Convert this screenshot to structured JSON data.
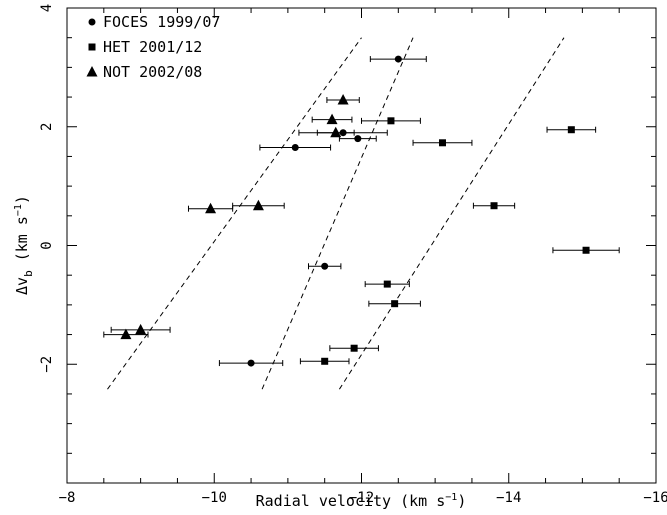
{
  "chart_data": {
    "type": "scatter",
    "xlabel": "Radial velocity (km s",
    "xlabel_sup": "−1",
    "xlabel_close": ")",
    "ylabel_main": "Δv",
    "ylabel_sub": "b",
    "ylabel_rest": " (km s",
    "ylabel_sup": "−1",
    "ylabel_close": ")",
    "xlim": [
      -8,
      -16
    ],
    "ylim": [
      -4,
      4
    ],
    "x_ticks": [
      {
        "v": -8,
        "label": "−8"
      },
      {
        "v": -10,
        "label": "−10"
      },
      {
        "v": -12,
        "label": "−12"
      },
      {
        "v": -14,
        "label": "−14"
      },
      {
        "v": -16,
        "label": "−16"
      }
    ],
    "y_ticks": [
      {
        "v": 4,
        "label": "4"
      },
      {
        "v": 2,
        "label": "2"
      },
      {
        "v": 0,
        "label": "0"
      },
      {
        "v": -2,
        "label": "−2"
      }
    ],
    "legend_position": "top-left",
    "series": [
      {
        "name": "FOCES 1999/07",
        "marker": "circle",
        "points": [
          {
            "x": -12.5,
            "y": 3.14,
            "xerr": 0.38
          },
          {
            "x": -11.75,
            "y": 1.9,
            "xerr": 0.6
          },
          {
            "x": -11.95,
            "y": 1.8,
            "xerr": 0.25
          },
          {
            "x": -11.1,
            "y": 1.65,
            "xerr": 0.48
          },
          {
            "x": -11.5,
            "y": -0.35,
            "xerr": 0.22
          },
          {
            "x": -10.5,
            "y": -1.98,
            "xerr": 0.43
          }
        ]
      },
      {
        "name": "HET 2001/12",
        "marker": "square",
        "points": [
          {
            "x": -12.4,
            "y": 2.1,
            "xerr": 0.4
          },
          {
            "x": -13.1,
            "y": 1.73,
            "xerr": 0.4
          },
          {
            "x": -14.85,
            "y": 1.95,
            "xerr": 0.33
          },
          {
            "x": -13.8,
            "y": 0.67,
            "xerr": 0.28
          },
          {
            "x": -15.05,
            "y": -0.08,
            "xerr": 0.45
          },
          {
            "x": -12.35,
            "y": -0.65,
            "xerr": 0.3
          },
          {
            "x": -12.45,
            "y": -0.98,
            "xerr": 0.35
          },
          {
            "x": -11.9,
            "y": -1.73,
            "xerr": 0.33
          },
          {
            "x": -11.5,
            "y": -1.95,
            "xerr": 0.33
          }
        ]
      },
      {
        "name": "NOT 2002/08",
        "marker": "triangle",
        "points": [
          {
            "x": -11.75,
            "y": 2.45,
            "xerr": 0.22
          },
          {
            "x": -11.6,
            "y": 2.12,
            "xerr": 0.27
          },
          {
            "x": -11.65,
            "y": 1.9,
            "xerr": 0.25
          },
          {
            "x": -10.6,
            "y": 0.67,
            "xerr": 0.35
          },
          {
            "x": -9.95,
            "y": 0.62,
            "xerr": 0.3
          },
          {
            "x": -9.0,
            "y": -1.42,
            "xerr": 0.4
          },
          {
            "x": -8.8,
            "y": -1.5,
            "xerr": 0.3
          }
        ]
      }
    ],
    "dashed_lines": [
      {
        "x1": -8.55,
        "y1": -2.42,
        "x2": -12.0,
        "y2": 3.5
      },
      {
        "x1": -10.65,
        "y1": -2.42,
        "x2": -12.7,
        "y2": 3.5
      },
      {
        "x1": -11.7,
        "y1": -2.42,
        "x2": -14.75,
        "y2": 3.5
      }
    ]
  }
}
